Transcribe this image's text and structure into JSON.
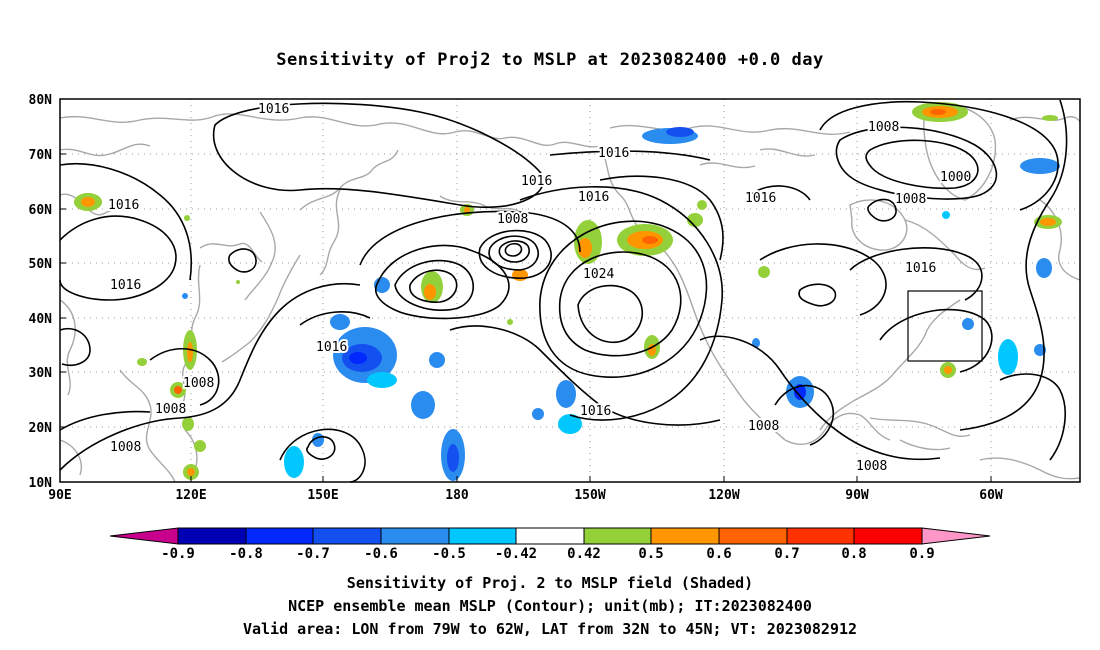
{
  "title": "Sensitivity of Proj2 to MSLP at 2023082400 +0.0 day",
  "captions": {
    "line1": "Sensitivity of Proj. 2 to MSLP field (Shaded)",
    "line2": "NCEP ensemble mean MSLP (Contour); unit(mb); IT:2023082400",
    "line3": "Valid area: LON from 79W to 62W, LAT from 32N to 45N; VT: 2023082912"
  },
  "axes": {
    "lat_labels": [
      "80N",
      "70N",
      "60N",
      "50N",
      "40N",
      "30N",
      "20N",
      "10N"
    ],
    "lon_labels": [
      "90E",
      "120E",
      "150E",
      "180",
      "150W",
      "120W",
      "90W",
      "60W"
    ]
  },
  "contour_labels": [
    "1016",
    "1016",
    "1016",
    "1016",
    "1016",
    "1016",
    "1016",
    "1016",
    "1016",
    "1008",
    "1008",
    "1008",
    "1008",
    "1008",
    "1008",
    "1008",
    "1008",
    "1000",
    "1024"
  ],
  "colorbar": {
    "tick_labels": [
      "-0.9",
      "-0.8",
      "-0.7",
      "-0.6",
      "-0.5",
      "-0.42",
      "0.42",
      "0.5",
      "0.6",
      "0.7",
      "0.8",
      "0.9"
    ],
    "colors": [
      "#c8008c",
      "#0000b4",
      "#0028ff",
      "#1450f0",
      "#2b8cf0",
      "#00c8ff",
      "#ffffff",
      "#94d03a",
      "#ff9600",
      "#ff6400",
      "#ff3200",
      "#ff0000",
      "#ff96c8"
    ]
  },
  "valid_area": {
    "lon_range": "79W to 62W",
    "lat_range": "32N to 45N"
  }
}
